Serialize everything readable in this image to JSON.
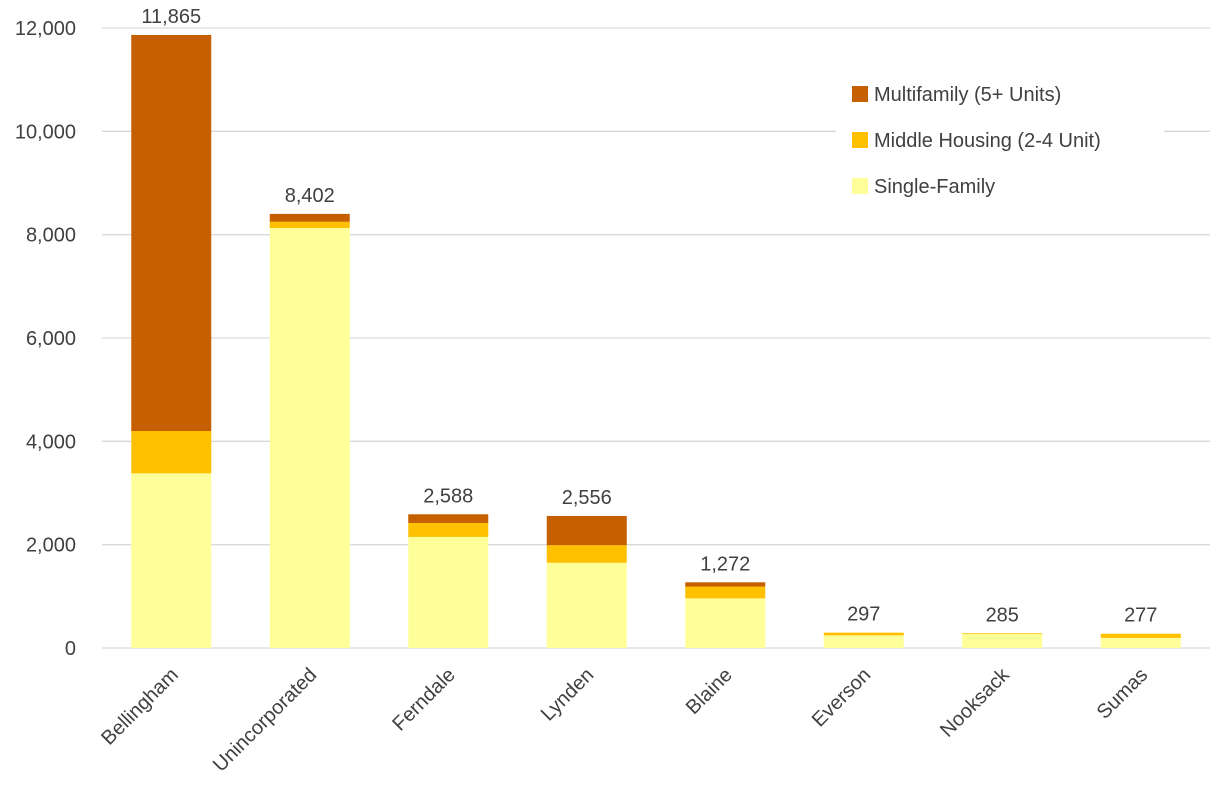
{
  "chart_data": {
    "type": "bar",
    "stacked": true,
    "categories": [
      "Bellingham",
      "Unincorporated",
      "Ferndale",
      "Lynden",
      "Blaine",
      "Everson",
      "Nooksack",
      "Sumas"
    ],
    "series": [
      {
        "name": "Single-Family",
        "color": "#FFFF99",
        "values": [
          3380,
          8130,
          2150,
          1650,
          960,
          245,
          270,
          195
        ]
      },
      {
        "name": "Middle Housing (2-4 Unit)",
        "color": "#FFC000",
        "values": [
          820,
          120,
          270,
          340,
          230,
          52,
          15,
          82
        ]
      },
      {
        "name": "Multifamily (5+ Units)",
        "color": "#C65F00",
        "values": [
          7665,
          152,
          168,
          566,
          82,
          0,
          0,
          0
        ]
      }
    ],
    "totals": [
      11865,
      8402,
      2588,
      2556,
      1272,
      297,
      285,
      277
    ],
    "total_labels": [
      "11,865",
      "8,402",
      "2,588",
      "2,556",
      "1,272",
      "297",
      "285",
      "277"
    ],
    "ylim": [
      0,
      12000
    ],
    "y_ticks": [
      0,
      2000,
      4000,
      6000,
      8000,
      10000,
      12000
    ],
    "y_tick_labels": [
      "0",
      "2,000",
      "4,000",
      "6,000",
      "8,000",
      "10,000",
      "12,000"
    ],
    "grid": true,
    "legend": {
      "placement": "top-right",
      "entries": [
        "Multifamily (5+ Units)",
        "Middle Housing (2-4 Unit)",
        "Single-Family"
      ]
    },
    "title": "",
    "xlabel": "",
    "ylabel": ""
  }
}
